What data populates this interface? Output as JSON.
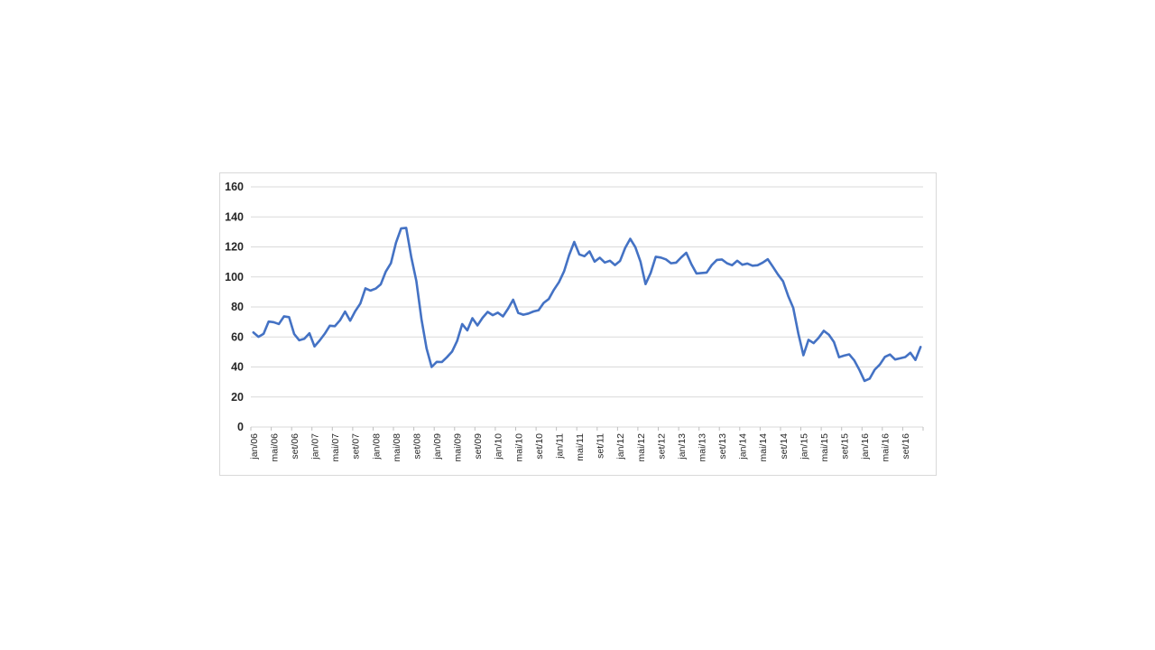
{
  "window": {
    "background": "#ffffff"
  },
  "chart": {
    "colors": {
      "line": "#4472c4",
      "gridline": "#d9d9d9",
      "axis_line": "#d9d9d9",
      "tick": "#bfbfbf",
      "border": "#d9d9d9",
      "label": "#262626",
      "background": "#ffffff"
    },
    "line_width": 2.6
  },
  "chart_data": {
    "type": "line",
    "title": "",
    "xlabel": "",
    "ylabel": "",
    "ylim": [
      0,
      160
    ],
    "y_ticks": [
      0,
      20,
      40,
      60,
      80,
      100,
      120,
      140,
      160
    ],
    "grid": true,
    "legend": false,
    "x_start": "jan/06",
    "x_end": "dez/16",
    "x_frequency": "monthly",
    "x_tick_interval_months": 4,
    "x_tick_labels": [
      "jan/06",
      "mai/06",
      "set/06",
      "jan/07",
      "mai/07",
      "set/07",
      "jan/08",
      "mai/08",
      "set/08",
      "jan/09",
      "mai/09",
      "set/09",
      "jan/10",
      "mai/10",
      "set/10",
      "jan/11",
      "mai/11",
      "set/11",
      "jan/12",
      "mai/12",
      "set/12",
      "jan/13",
      "mai/13",
      "set/13",
      "jan/14",
      "mai/14",
      "set/14",
      "jan/15",
      "mai/15",
      "set/15",
      "jan/16",
      "mai/16",
      "set/16"
    ],
    "values": [
      63.0,
      60.1,
      62.1,
      70.3,
      69.8,
      68.6,
      73.7,
      73.2,
      62.0,
      57.8,
      58.8,
      62.5,
      53.7,
      57.6,
      62.1,
      67.5,
      67.2,
      71.1,
      76.9,
      70.8,
      77.2,
      82.3,
      92.4,
      90.9,
      92.2,
      95.0,
      103.6,
      109.1,
      122.8,
      132.3,
      132.7,
      113.2,
      97.2,
      71.9,
      52.4,
      40.0,
      43.4,
      43.3,
      46.5,
      50.2,
      57.3,
      68.6,
      64.4,
      72.5,
      67.7,
      72.8,
      76.7,
      74.5,
      76.2,
      73.7,
      78.8,
      84.8,
      76.0,
      74.8,
      75.6,
      77.0,
      77.8,
      82.7,
      85.3,
      91.4,
      96.5,
      103.7,
      114.6,
      123.3,
      115.0,
      113.8,
      117.0,
      110.2,
      112.8,
      109.6,
      110.8,
      107.9,
      110.7,
      119.3,
      125.4,
      119.8,
      110.3,
      95.2,
      102.6,
      113.4,
      112.9,
      111.7,
      109.1,
      109.5,
      113.0,
      116.1,
      108.5,
      102.3,
      102.6,
      102.9,
      107.9,
      111.3,
      111.6,
      109.1,
      107.8,
      110.8,
      108.1,
      108.9,
      107.5,
      107.8,
      109.5,
      111.8,
      106.8,
      101.6,
      97.1,
      87.4,
      79.4,
      62.3,
      47.8,
      58.1,
      55.9,
      59.5,
      64.1,
      61.5,
      56.6,
      46.5,
      47.6,
      48.4,
      44.3,
      38.0,
      30.7,
      32.2,
      38.2,
      41.6,
      46.7,
      48.3,
      45.0,
      45.8,
      46.6,
      49.5,
      44.7,
      53.3
    ]
  }
}
